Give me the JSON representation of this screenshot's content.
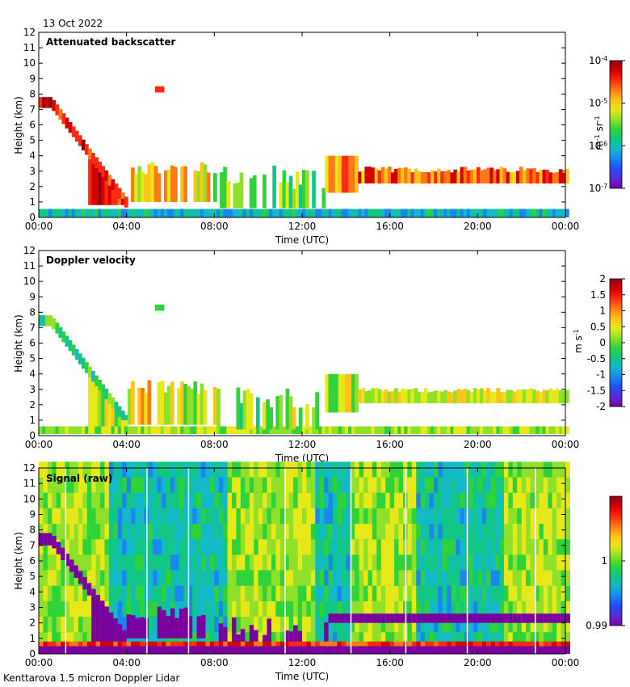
{
  "date_label": "13 Oct 2022",
  "footer": "Kenttarova 1.5 micron Doppler Lidar",
  "colors": {
    "colormap": [
      "#7a00a0",
      "#5a2cd8",
      "#1f4ef5",
      "#1b86f0",
      "#14b9c8",
      "#12c785",
      "#30d23a",
      "#8fe028",
      "#e6e81a",
      "#ffc41a",
      "#ff7a15",
      "#ff2a10",
      "#d40000",
      "#8c0018"
    ],
    "white": "#ffffff"
  },
  "chart_data": [
    {
      "type": "heatmap",
      "panel": "attenuated-backscatter",
      "title": "Attenuated backscatter",
      "xlabel": "Time (UTC)",
      "ylabel": "Height (km)",
      "xlim": [
        0,
        24
      ],
      "ylim": [
        0,
        12
      ],
      "xticks": [
        "00:00",
        "04:00",
        "08:00",
        "12:00",
        "16:00",
        "20:00",
        "00:00"
      ],
      "yticks": [
        "0",
        "1",
        "2",
        "3",
        "4",
        "5",
        "6",
        "7",
        "8",
        "9",
        "10",
        "11",
        "12"
      ],
      "colorbar": {
        "scale": "log",
        "range": [
          1e-07,
          0.0001
        ],
        "ticks": [
          {
            "base": "10",
            "exp": "-4"
          },
          {
            "base": "10",
            "exp": "-5"
          },
          {
            "base": "10",
            "exp": "-6"
          },
          {
            "base": "10",
            "exp": "-7"
          }
        ],
        "units": {
          "a": "m",
          "a_exp": "-1",
          "b": " sr",
          "b_exp": "-1"
        }
      },
      "features": [
        {
          "name": "cloud-descending",
          "from_hour": 0,
          "to_hour": 4,
          "top_km": [
            7.8,
            1.0
          ],
          "value_level": 0.85
        },
        {
          "name": "cloud-layer",
          "from_hour": 13,
          "to_hour": 23.8,
          "base_km": 2.3,
          "top_km": 3.0,
          "value_level": 0.8
        },
        {
          "name": "boundary-layer",
          "from_hour": 0,
          "to_hour": 24,
          "top_km": 0.6,
          "value_level": 0.3
        }
      ]
    },
    {
      "type": "heatmap",
      "panel": "doppler-velocity",
      "title": "Doppler velocity",
      "xlabel": "Time (UTC)",
      "ylabel": "Height (km)",
      "xlim": [
        0,
        24
      ],
      "ylim": [
        0,
        12
      ],
      "xticks": [
        "00:00",
        "04:00",
        "08:00",
        "12:00",
        "16:00",
        "20:00",
        "00:00"
      ],
      "yticks": [
        "0",
        "1",
        "2",
        "3",
        "4",
        "5",
        "6",
        "7",
        "8",
        "9",
        "10",
        "11",
        "12"
      ],
      "colorbar": {
        "scale": "linear",
        "range": [
          -2,
          2
        ],
        "ticks": [
          "2",
          "1.5",
          "1",
          "0.5",
          "0",
          "-0.5",
          "-1",
          "-1.5",
          "-2"
        ],
        "units": {
          "a": "m",
          "b": " s",
          "b_exp": "-1"
        }
      }
    },
    {
      "type": "heatmap",
      "panel": "signal-raw",
      "title": "Signal (raw)",
      "xlabel": "Time (UTC)",
      "ylabel": "Height (km)",
      "xlim": [
        0,
        24
      ],
      "ylim": [
        0,
        12
      ],
      "xticks": [
        "00:00",
        "04:00",
        "08:00",
        "12:00",
        "16:00",
        "20:00",
        "00:00"
      ],
      "yticks": [
        "0",
        "1",
        "2",
        "3",
        "4",
        "5",
        "6",
        "7",
        "8",
        "9",
        "10",
        "11",
        "12"
      ],
      "colorbar": {
        "scale": "linear",
        "range": [
          0.99,
          1.01
        ],
        "ticks": [
          "1",
          "0.99"
        ]
      }
    }
  ]
}
